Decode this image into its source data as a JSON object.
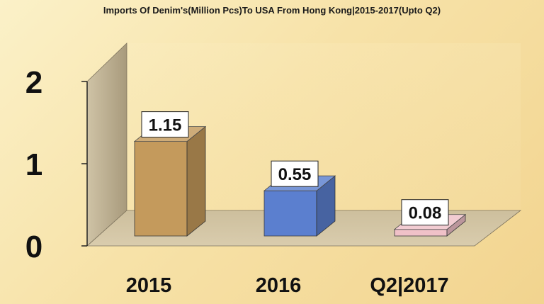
{
  "chart_data": {
    "type": "bar",
    "title": "Imports Of Denim's(Million Pcs)To USA From Hong Kong|2015-2017(Upto Q2)",
    "categories": [
      "2015",
      "2016",
      "Q2|2017"
    ],
    "values": [
      1.15,
      0.55,
      0.08
    ],
    "data_labels": [
      "1.15",
      "0.55",
      "0.08"
    ],
    "y_ticks": [
      "0",
      "1",
      "2"
    ],
    "ylim": [
      0,
      2
    ],
    "xlabel": "",
    "ylabel": "",
    "grid": false,
    "style": "3d",
    "colors": [
      "#c49a5c",
      "#5b7fcf",
      "#f0c1c8"
    ]
  }
}
